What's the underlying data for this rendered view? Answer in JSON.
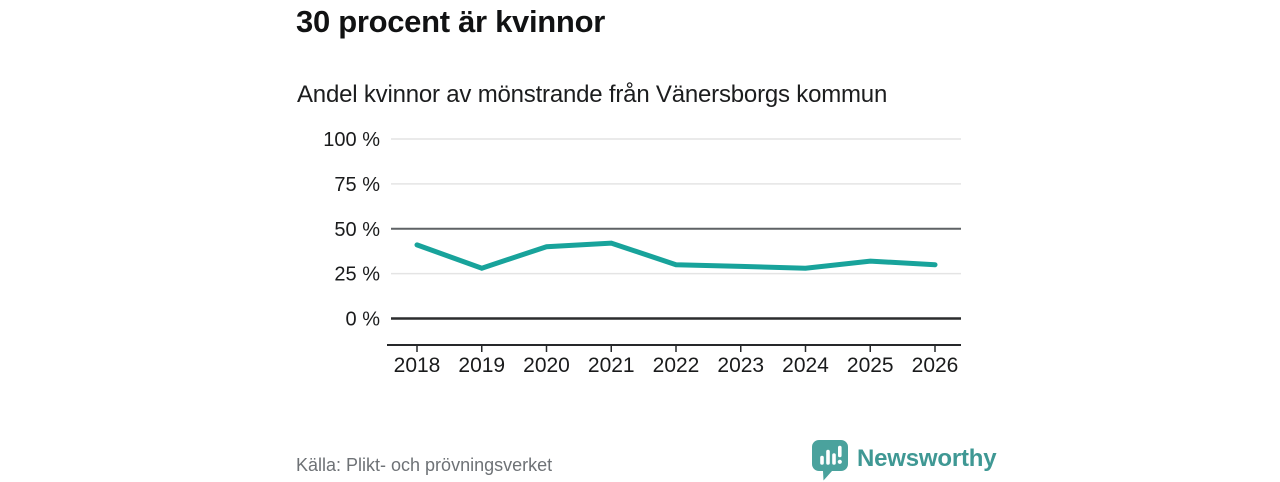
{
  "header": {
    "title": "30 procent är kvinnor",
    "subtitle": "Andel kvinnor av mönstrande från Vänersborgs kommun"
  },
  "chart_data": {
    "type": "line",
    "title": "Andel kvinnor av mönstrande från Vänersborgs kommun",
    "categories": [
      "2018",
      "2019",
      "2020",
      "2021",
      "2022",
      "2023",
      "2024",
      "2025",
      "2026"
    ],
    "values": [
      41,
      28,
      40,
      42,
      30,
      29,
      28,
      32,
      30
    ],
    "unit": "%",
    "ylim": [
      0,
      100
    ],
    "yticks": [
      {
        "value": 100,
        "label": "100 %"
      },
      {
        "value": 75,
        "label": "75 %"
      },
      {
        "value": 50,
        "label": "50 %"
      },
      {
        "value": 25,
        "label": "25 %"
      },
      {
        "value": 0,
        "label": "0 %"
      }
    ],
    "reference_line_value": 50,
    "grid": "horizontal",
    "legend": "none",
    "line_color": "#18a39b"
  },
  "footer": {
    "source": "Källa: Plikt- och prövningsverket",
    "brand": {
      "name": "Newsworthy",
      "logo_icon": "bar-chart-speech-bubble",
      "logo_color": "#4aa29d",
      "text_color": "#3f9894"
    }
  }
}
